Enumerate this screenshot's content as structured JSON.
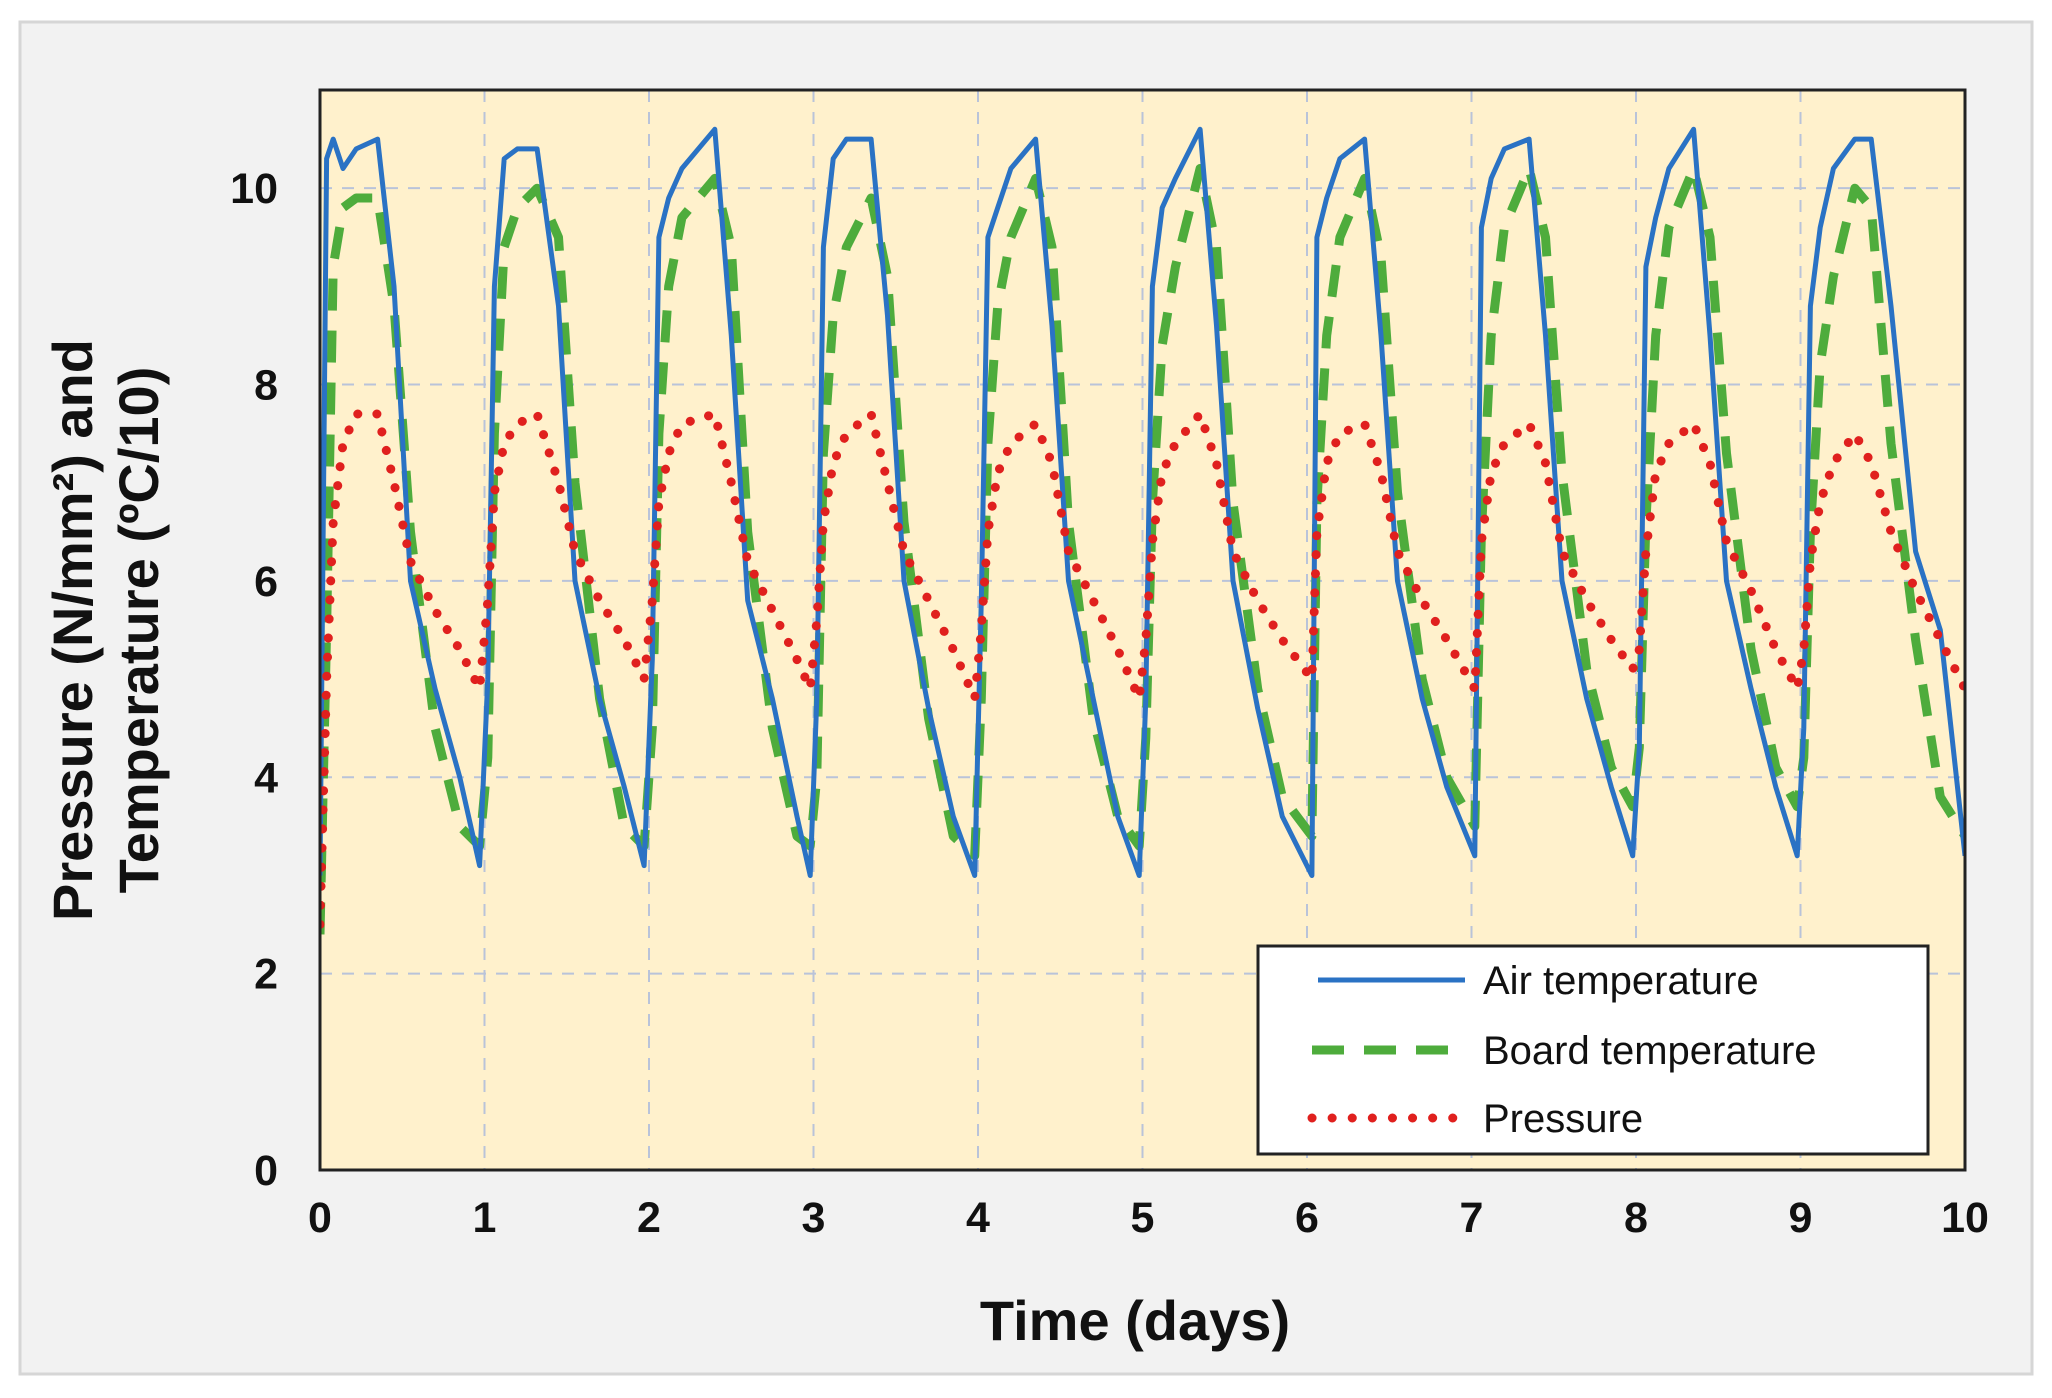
{
  "colors": {
    "figure_background": "#f2f2f2",
    "plot_background": "#fff1cc",
    "grid": "#b9c3d9",
    "air": "#2a72c4",
    "board": "#4eac3c",
    "pressure": "#e0201e"
  },
  "chart_data": {
    "type": "line",
    "title": "",
    "xlabel": "Time (days)",
    "ylabel_line1": "Pressure (N/mm²) and",
    "ylabel_line2": "Temperature (ºC/10)",
    "xlim": [
      0,
      10
    ],
    "ylim": [
      0,
      11
    ],
    "xticks": [
      "0",
      "1",
      "2",
      "3",
      "4",
      "5",
      "6",
      "7",
      "8",
      "9",
      "10"
    ],
    "yticks": [
      "0",
      "2",
      "4",
      "6",
      "8",
      "10"
    ],
    "grid": true,
    "legend_position": "bottom-right",
    "series": [
      {
        "name": "Air temperature",
        "style": "solid",
        "x": [
          0,
          0.04,
          0.08,
          0.14,
          0.22,
          0.35,
          0.45,
          0.55,
          0.7,
          0.85,
          0.97,
          1.02,
          1.06,
          1.12,
          1.2,
          1.32,
          1.45,
          1.55,
          1.7,
          1.85,
          1.97,
          2.02,
          2.06,
          2.12,
          2.2,
          2.4,
          2.5,
          2.6,
          2.75,
          2.9,
          2.98,
          3.02,
          3.06,
          3.12,
          3.2,
          3.35,
          3.45,
          3.55,
          3.7,
          3.85,
          3.98,
          4.02,
          4.06,
          4.12,
          4.2,
          4.35,
          4.45,
          4.55,
          4.7,
          4.85,
          4.98,
          5.02,
          5.06,
          5.12,
          5.2,
          5.35,
          5.45,
          5.55,
          5.7,
          5.85,
          6.03,
          6.06,
          6.12,
          6.2,
          6.35,
          6.45,
          6.55,
          6.7,
          6.85,
          7.02,
          7.06,
          7.12,
          7.2,
          7.35,
          7.45,
          7.55,
          7.7,
          7.85,
          7.98,
          8.02,
          8.06,
          8.12,
          8.2,
          8.35,
          8.45,
          8.55,
          8.7,
          8.85,
          8.98,
          9.02,
          9.06,
          9.12,
          9.2,
          9.33,
          9.43,
          9.55,
          9.7,
          9.85,
          10.0
        ],
        "y": [
          3.0,
          10.3,
          10.5,
          10.2,
          10.4,
          10.5,
          9.0,
          6.0,
          4.9,
          4.0,
          3.1,
          5.0,
          9.0,
          10.3,
          10.4,
          10.4,
          8.8,
          6.0,
          4.8,
          3.9,
          3.1,
          5.2,
          9.5,
          9.9,
          10.2,
          10.6,
          8.5,
          5.8,
          4.8,
          3.6,
          3.0,
          4.8,
          9.4,
          10.3,
          10.5,
          10.5,
          8.7,
          6.0,
          4.7,
          3.6,
          3.0,
          5.8,
          9.5,
          9.8,
          10.2,
          10.5,
          8.6,
          6.0,
          4.8,
          3.6,
          3.0,
          4.8,
          9.0,
          9.8,
          10.1,
          10.6,
          8.6,
          6.0,
          4.7,
          3.6,
          3.0,
          9.5,
          9.9,
          10.3,
          10.5,
          8.5,
          6.0,
          4.8,
          3.9,
          3.2,
          9.6,
          10.1,
          10.4,
          10.5,
          8.5,
          6.0,
          4.8,
          3.9,
          3.2,
          4.3,
          9.2,
          9.7,
          10.2,
          10.6,
          8.5,
          6.0,
          4.9,
          3.9,
          3.2,
          4.5,
          8.8,
          9.6,
          10.2,
          10.5,
          10.5,
          8.8,
          6.3,
          5.5,
          3.2
        ]
      },
      {
        "name": "Board temperature",
        "style": "dashed",
        "x": [
          0,
          0.04,
          0.08,
          0.14,
          0.22,
          0.35,
          0.45,
          0.55,
          0.7,
          0.85,
          0.97,
          1.02,
          1.06,
          1.12,
          1.2,
          1.32,
          1.45,
          1.55,
          1.7,
          1.85,
          1.97,
          2.02,
          2.06,
          2.12,
          2.2,
          2.4,
          2.5,
          2.6,
          2.75,
          2.9,
          2.98,
          3.02,
          3.06,
          3.12,
          3.2,
          3.35,
          3.45,
          3.55,
          3.7,
          3.85,
          3.98,
          4.02,
          4.06,
          4.12,
          4.2,
          4.35,
          4.45,
          4.55,
          4.7,
          4.85,
          4.98,
          5.02,
          5.06,
          5.12,
          5.2,
          5.35,
          5.45,
          5.55,
          5.7,
          5.85,
          6.03,
          6.06,
          6.12,
          6.2,
          6.35,
          6.45,
          6.55,
          6.7,
          6.85,
          7.02,
          7.06,
          7.12,
          7.2,
          7.35,
          7.45,
          7.55,
          7.7,
          7.85,
          7.98,
          8.02,
          8.06,
          8.12,
          8.2,
          8.35,
          8.45,
          8.55,
          8.7,
          8.85,
          8.98,
          9.02,
          9.06,
          9.12,
          9.2,
          9.33,
          9.43,
          9.55,
          9.7,
          9.85,
          10.0
        ],
        "y": [
          2.4,
          5.5,
          9.2,
          9.8,
          9.9,
          9.9,
          8.8,
          6.5,
          4.5,
          3.5,
          3.3,
          4.2,
          7.5,
          9.4,
          9.8,
          10.0,
          9.5,
          7.0,
          4.8,
          3.5,
          3.3,
          4.5,
          7.5,
          9.0,
          9.7,
          10.1,
          9.4,
          6.5,
          4.5,
          3.4,
          3.3,
          4.0,
          7.3,
          8.7,
          9.4,
          9.9,
          9.1,
          6.6,
          4.6,
          3.4,
          3.2,
          4.8,
          7.4,
          8.8,
          9.5,
          10.1,
          9.4,
          6.6,
          4.6,
          3.6,
          3.3,
          4.4,
          6.8,
          8.4,
          9.2,
          10.2,
          9.4,
          6.8,
          4.9,
          3.8,
          3.4,
          6.8,
          8.5,
          9.5,
          10.1,
          9.3,
          6.9,
          5.0,
          4.0,
          3.5,
          6.5,
          8.5,
          9.6,
          10.2,
          9.5,
          7.1,
          5.1,
          4.1,
          3.7,
          4.3,
          6.6,
          8.5,
          9.6,
          10.2,
          9.5,
          7.3,
          5.3,
          4.1,
          3.7,
          4.2,
          6.5,
          8.2,
          9.1,
          10.0,
          9.8,
          7.4,
          5.4,
          3.8,
          3.4
        ]
      },
      {
        "name": "Pressure",
        "style": "dotted",
        "x": [
          0,
          0.04,
          0.08,
          0.14,
          0.22,
          0.35,
          0.45,
          0.55,
          0.7,
          0.85,
          0.97,
          1.02,
          1.06,
          1.12,
          1.2,
          1.32,
          1.45,
          1.55,
          1.7,
          1.85,
          1.97,
          2.02,
          2.06,
          2.12,
          2.2,
          2.4,
          2.5,
          2.6,
          2.75,
          2.9,
          2.98,
          3.02,
          3.06,
          3.12,
          3.2,
          3.35,
          3.45,
          3.55,
          3.7,
          3.85,
          3.98,
          4.02,
          4.06,
          4.12,
          4.2,
          4.35,
          4.45,
          4.55,
          4.7,
          4.85,
          4.98,
          5.02,
          5.06,
          5.12,
          5.2,
          5.35,
          5.45,
          5.55,
          5.7,
          5.85,
          6.03,
          6.06,
          6.12,
          6.2,
          6.35,
          6.45,
          6.55,
          6.7,
          6.85,
          7.02,
          7.06,
          7.12,
          7.2,
          7.35,
          7.45,
          7.55,
          7.7,
          7.85,
          7.98,
          8.02,
          8.06,
          8.12,
          8.2,
          8.35,
          8.45,
          8.55,
          8.7,
          8.85,
          8.98,
          9.02,
          9.06,
          9.12,
          9.2,
          9.33,
          9.43,
          9.55,
          9.7,
          9.85,
          10.0
        ],
        "y": [
          2.5,
          5.0,
          6.6,
          7.4,
          7.7,
          7.7,
          7.0,
          6.2,
          5.7,
          5.3,
          4.9,
          5.8,
          6.9,
          7.4,
          7.6,
          7.7,
          7.0,
          6.3,
          5.8,
          5.4,
          5.0,
          5.8,
          6.8,
          7.3,
          7.6,
          7.7,
          7.0,
          6.2,
          5.7,
          5.2,
          4.9,
          5.6,
          6.6,
          7.2,
          7.5,
          7.7,
          7.0,
          6.3,
          5.8,
          5.3,
          4.8,
          5.5,
          6.5,
          7.1,
          7.4,
          7.6,
          7.2,
          6.3,
          5.8,
          5.3,
          4.8,
          5.4,
          6.4,
          7.1,
          7.4,
          7.7,
          7.2,
          6.3,
          5.8,
          5.4,
          5.0,
          6.5,
          7.2,
          7.5,
          7.6,
          7.1,
          6.3,
          5.8,
          5.4,
          4.9,
          6.4,
          7.1,
          7.4,
          7.6,
          7.2,
          6.3,
          5.8,
          5.4,
          5.1,
          5.3,
          6.3,
          7.1,
          7.4,
          7.6,
          7.2,
          6.4,
          5.9,
          5.3,
          4.9,
          5.3,
          6.2,
          6.8,
          7.2,
          7.5,
          7.2,
          6.5,
          5.9,
          5.4,
          4.9
        ]
      }
    ]
  }
}
